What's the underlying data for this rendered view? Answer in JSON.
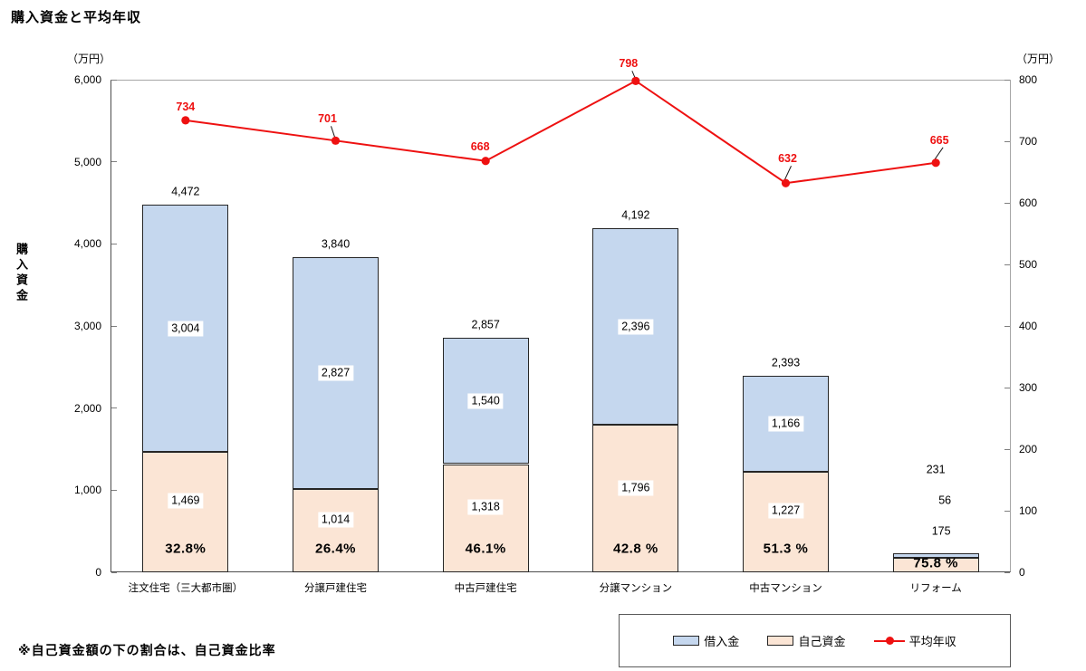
{
  "chart_data": {
    "type": "bar",
    "subtype": "stacked-bar-with-line-overlay",
    "title": "購入資金と平均年収",
    "footnote": "※自己資金額の下の割合は、自己資金比率",
    "categories": [
      "注文住宅（三大都市圏）",
      "分譲戸建住宅",
      "中古戸建住宅",
      "分譲マンション",
      "中古マンション",
      "リフォーム"
    ],
    "series": [
      {
        "name": "借入金",
        "type": "bar",
        "stack_position": "top",
        "color": "#c5d7ee",
        "values": [
          3004,
          2827,
          1540,
          2396,
          1166,
          56
        ],
        "labels": [
          "3,004",
          "2,827",
          "1,540",
          "2,396",
          "1,166",
          "56"
        ]
      },
      {
        "name": "自己資金",
        "type": "bar",
        "stack_position": "bottom",
        "color": "#fbe5d5",
        "values": [
          1469,
          1014,
          1318,
          1796,
          1227,
          175
        ],
        "labels": [
          "1,469",
          "1,014",
          "1,318",
          "1,796",
          "1,227",
          "175"
        ]
      },
      {
        "name": "平均年収",
        "type": "line",
        "axis": "right",
        "color": "#ee1111",
        "values": [
          734,
          701,
          668,
          798,
          632,
          665
        ],
        "labels": [
          "734",
          "701",
          "668",
          "798",
          "632",
          "665"
        ]
      }
    ],
    "totals": [
      4472,
      3840,
      2857,
      4192,
      2393,
      231
    ],
    "total_labels": [
      "4,472",
      "3,840",
      "2,857",
      "4,192",
      "2,393",
      "231"
    ],
    "percent_labels": [
      "32.8%",
      "26.4%",
      "46.1%",
      "42.8 %",
      "51.3 %",
      "75.8 %"
    ],
    "left_axis": {
      "unit": "（万円）",
      "label": "購入資金",
      "min": 0,
      "max": 6000,
      "tick_labels": [
        "6,000",
        "5,000",
        "4,000",
        "3,000",
        "2,000",
        "1,000",
        "0"
      ]
    },
    "right_axis": {
      "unit": "（万円）",
      "min": 0,
      "max": 800,
      "tick_labels": [
        "800",
        "700",
        "600",
        "500",
        "400",
        "300",
        "200",
        "100",
        "0"
      ]
    },
    "grid": "off",
    "legend_position": "bottom-right"
  }
}
